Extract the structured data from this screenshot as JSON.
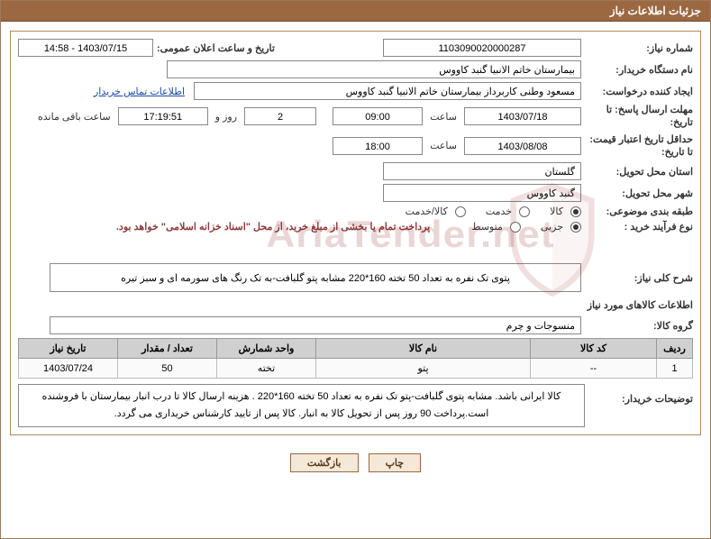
{
  "title": "جزئیات اطلاعات نیاز",
  "labels": {
    "reqNumber": "شماره نیاز:",
    "announceDate": "تاریخ و ساعت اعلان عمومی:",
    "buyerOrg": "نام دستگاه خریدار:",
    "requester": "ایجاد کننده درخواست:",
    "deadline": "مهلت ارسال پاسخ: تا تاریخ:",
    "validity": "حداقل تاریخ اعتبار قیمت: تا تاریخ:",
    "province": "استان محل تحویل:",
    "city": "شهر محل تحویل:",
    "category": "طبقه بندی موضوعی:",
    "purchaseType": "نوع فرآیند خرید :",
    "overallDesc": "شرح کلی نیاز:",
    "itemsHeader": "اطلاعات کالاهای مورد نیاز",
    "goodsGroup": "گروه کالا:",
    "buyerNotes": "توضیحات خریدار:",
    "hour": "ساعت",
    "daysAnd": "روز و",
    "remaining": "ساعت باقی مانده",
    "contactLink": "اطلاعات تماس خریدار"
  },
  "fields": {
    "reqNumber": "1103090020000287",
    "announceDate": "1403/07/15 - 14:58",
    "buyerOrg": "بیمارستان خاتم الانبیا گنبد کاووس",
    "requester": "مسعود وطنی کاربرداز بیمارستان خاتم الانبیا گنبد کاووس",
    "deadlineDate": "1403/07/18",
    "deadlineTime": "09:00",
    "daysLeft": "2",
    "timeLeft": "17:19:51",
    "validityDate": "1403/08/08",
    "validityTime": "18:00",
    "province": "گلستان",
    "city": "گنبد کاووس",
    "goodsGroup": "منسوجات و چرم"
  },
  "radios": {
    "cat": [
      {
        "label": "کالا",
        "checked": true
      },
      {
        "label": "خدمت",
        "checked": false
      },
      {
        "label": "کالا/خدمت",
        "checked": false
      }
    ],
    "ptype": [
      {
        "label": "جزیی",
        "checked": true
      },
      {
        "label": "متوسط",
        "checked": false
      }
    ]
  },
  "paymentNote": "پرداخت تمام یا بخشی از مبلغ خرید، از محل \"اسناد خزانه اسلامی\" خواهد بود.",
  "overallDesc": "پتوی تک نفره به تعداد 50 تخته 160*220 مشابه پتو گلبافت-به تک رنگ های سورمه ای و سبز تیره",
  "table": {
    "headers": [
      "ردیف",
      "کد کالا",
      "نام کالا",
      "واحد شمارش",
      "تعداد / مقدار",
      "تاریخ نیاز"
    ],
    "widths": [
      "40px",
      "140px",
      "auto",
      "110px",
      "110px",
      "110px"
    ],
    "rows": [
      [
        "1",
        "--",
        "پتو",
        "تخته",
        "50",
        "1403/07/24"
      ]
    ]
  },
  "buyerNotes": "کالا ایرانی باشد. مشابه پتوی گلبافت-پتو تک نفره به تعداد 50 تخته 160*220 . هزینه ارسال کالا تا درب انبار بیمارستان با فروشنده است.پرداخت 90 روز پس از تحویل کالا به انبار. کالا پس از تایید کارشناس خریداری می گردد.",
  "buttons": {
    "print": "چاپ",
    "back": "بازگشت"
  },
  "watermark": "AriaTender.net"
}
